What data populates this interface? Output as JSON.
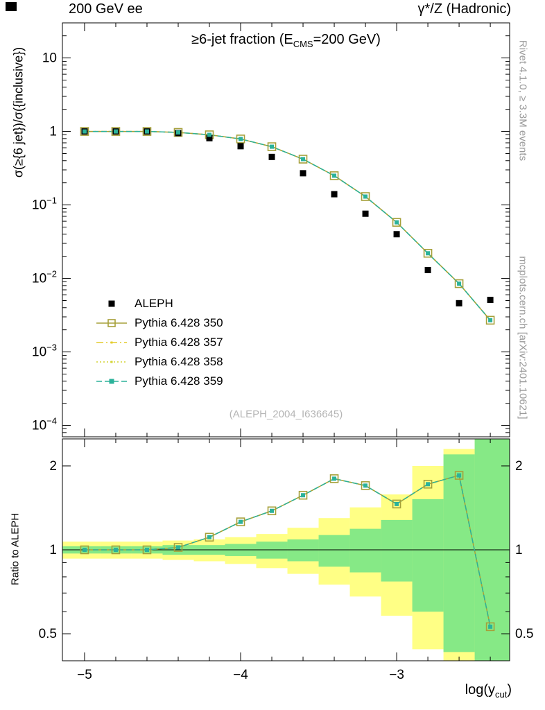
{
  "page": {
    "background": "#ffffff"
  },
  "header": {
    "left": "200 GeV ee",
    "right": "γ*/Z (Hadronic)"
  },
  "side_notes": {
    "rivet": "Rivet 4.1.0, ≥ 3.3M events",
    "mcplots": "mcplots.cern.ch [arXiv:2401.10621]"
  },
  "main_panel": {
    "title_pre": "≥6-jet fraction (E",
    "title_sub": "CMS",
    "title_post": "=200 GeV)",
    "title_full": "≥6-jet fraction (E_CMS=200 GeV)",
    "ylabel": "σ(≥{6 jet})/σ({inclusive})",
    "watermark": "(ALEPH_2004_I636645)"
  },
  "ratio_panel": {
    "ylabel": "Ratio to ALEPH"
  },
  "xaxis": {
    "label_pre": "log(y",
    "label_sub": "cut",
    "label_post": ")",
    "label_full": "log(y_cut)"
  },
  "legend": {
    "items": [
      {
        "label": "ALEPH"
      },
      {
        "label": "Pythia 6.428 350"
      },
      {
        "label": "Pythia 6.428 357"
      },
      {
        "label": "Pythia 6.428 358"
      },
      {
        "label": "Pythia 6.428 359"
      }
    ]
  },
  "chart_data": {
    "type": "line",
    "title": "≥6-jet fraction (E_CMS=200 GeV)",
    "xlabel": "log(y_cut)",
    "ylabel": "σ(≥{6 jet})/σ({inclusive})",
    "ratio_ylabel": "Ratio to ALEPH",
    "x_scale": "linear",
    "y_scale": "log",
    "xlim": [
      -5.142,
      -2.276
    ],
    "ylim_main": [
      7e-05,
      30
    ],
    "ylim_ratio": [
      0.4,
      2.5
    ],
    "x_major_ticks": [
      -5,
      -4,
      -3
    ],
    "x_minor_step": 0.2,
    "y_main_tick_exponents": [
      1,
      0,
      -1,
      -2,
      -3,
      -4
    ],
    "y_ratio_ticks": [
      0.5,
      1,
      2
    ],
    "y_ratio_minor_ticks": [
      0.4,
      0.6,
      0.7,
      0.8,
      0.9
    ],
    "x": [
      -5.0,
      -4.8,
      -4.6,
      -4.4,
      -4.2,
      -4.0,
      -3.8,
      -3.6,
      -3.4,
      -3.2,
      -3.0,
      -2.8,
      -2.6,
      -2.4
    ],
    "series": [
      {
        "name": "ALEPH",
        "color": "#000000",
        "marker": "filled-square",
        "line": "none",
        "values": [
          1.0,
          1.0,
          1.0,
          0.95,
          0.81,
          0.63,
          0.45,
          0.27,
          0.14,
          0.076,
          0.04,
          0.013,
          0.0046,
          0.0051
        ]
      },
      {
        "name": "Pythia 6.428 350",
        "color": "#a6a03a",
        "marker": "open-square",
        "line": "solid",
        "values": [
          1.0,
          1.0,
          1.0,
          0.97,
          0.9,
          0.79,
          0.62,
          0.42,
          0.25,
          0.13,
          0.058,
          0.022,
          0.0085,
          0.0027
        ]
      },
      {
        "name": "Pythia 6.428 357",
        "color": "#e4cc2c",
        "marker": "small-dot",
        "line": "dashdot",
        "values": [
          1.0,
          1.0,
          1.0,
          0.97,
          0.9,
          0.79,
          0.62,
          0.42,
          0.25,
          0.13,
          0.058,
          0.022,
          0.0085,
          0.0027
        ]
      },
      {
        "name": "Pythia 6.428 358",
        "color": "#d4d434",
        "marker": "small-dot",
        "line": "dotted",
        "values": [
          1.0,
          1.0,
          1.0,
          0.97,
          0.9,
          0.79,
          0.62,
          0.42,
          0.25,
          0.13,
          0.058,
          0.022,
          0.0085,
          0.0027
        ]
      },
      {
        "name": "Pythia 6.428 359",
        "color": "#2bb29a",
        "marker": "filled-square-small",
        "line": "dashed",
        "values": [
          1.0,
          1.0,
          1.0,
          0.97,
          0.9,
          0.79,
          0.62,
          0.42,
          0.25,
          0.13,
          0.058,
          0.022,
          0.0085,
          0.0027
        ]
      }
    ],
    "ratio": {
      "reference": 1,
      "values": [
        1.0,
        1.0,
        1.0,
        1.02,
        1.11,
        1.26,
        1.38,
        1.57,
        1.8,
        1.7,
        1.46,
        1.72,
        1.85,
        0.53
      ],
      "bands": {
        "yellow": {
          "color": "#ffff85",
          "bins": [
            [
              -5.142,
              -4.9,
              0.93,
              1.07
            ],
            [
              -4.9,
              -4.7,
              0.93,
              1.07
            ],
            [
              -4.7,
              -4.5,
              0.93,
              1.07
            ],
            [
              -4.5,
              -4.3,
              0.92,
              1.08
            ],
            [
              -4.3,
              -4.1,
              0.91,
              1.09
            ],
            [
              -4.1,
              -3.9,
              0.89,
              1.11
            ],
            [
              -3.9,
              -3.7,
              0.86,
              1.14
            ],
            [
              -3.7,
              -3.5,
              0.82,
              1.2
            ],
            [
              -3.5,
              -3.3,
              0.75,
              1.3
            ],
            [
              -3.3,
              -3.1,
              0.68,
              1.42
            ],
            [
              -3.1,
              -2.9,
              0.58,
              1.58
            ],
            [
              -2.9,
              -2.7,
              0.44,
              2.0
            ],
            [
              -2.7,
              -2.5,
              0.4,
              2.3
            ],
            [
              -2.5,
              -2.276,
              0.4,
              2.5
            ]
          ]
        },
        "green": {
          "color": "#86e986",
          "bins": [
            [
              -5.142,
              -4.9,
              0.97,
              1.03
            ],
            [
              -4.9,
              -4.7,
              0.97,
              1.03
            ],
            [
              -4.7,
              -4.5,
              0.97,
              1.03
            ],
            [
              -4.5,
              -4.3,
              0.96,
              1.04
            ],
            [
              -4.3,
              -4.1,
              0.96,
              1.04
            ],
            [
              -4.1,
              -3.9,
              0.95,
              1.05
            ],
            [
              -3.9,
              -3.7,
              0.93,
              1.07
            ],
            [
              -3.7,
              -3.5,
              0.91,
              1.09
            ],
            [
              -3.5,
              -3.3,
              0.87,
              1.13
            ],
            [
              -3.3,
              -3.1,
              0.83,
              1.19
            ],
            [
              -3.1,
              -2.9,
              0.77,
              1.28
            ],
            [
              -2.9,
              -2.7,
              0.6,
              1.52
            ],
            [
              -2.7,
              -2.5,
              0.43,
              2.2
            ],
            [
              -2.5,
              -2.276,
              0.4,
              2.5
            ]
          ]
        }
      }
    }
  }
}
